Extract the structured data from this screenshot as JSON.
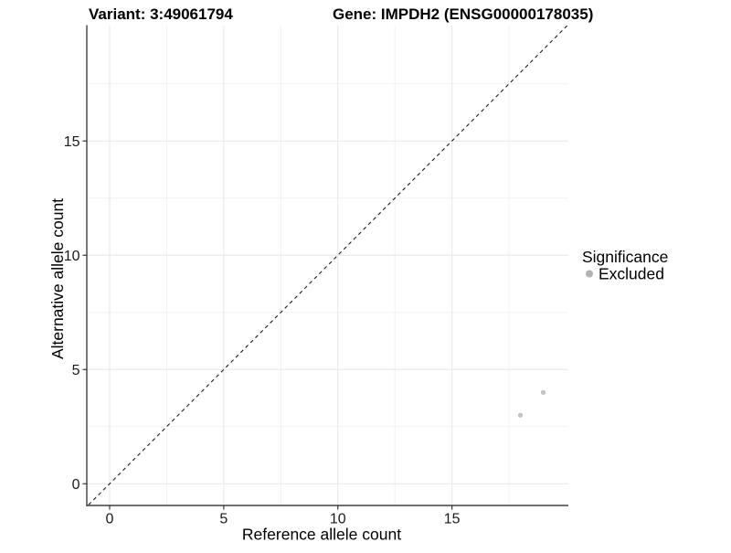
{
  "chart_data": {
    "type": "scatter",
    "titles": {
      "left": "Variant: 3:49061794",
      "right": "Gene: IMPDH2 (ENSG00000178035)"
    },
    "xlabel": "Reference allele count",
    "ylabel": "Alternative allele count",
    "xlim": [
      -1,
      20.1
    ],
    "ylim": [
      -0.95,
      20.05
    ],
    "x_ticks": [
      0,
      5,
      10,
      15
    ],
    "y_ticks": [
      0,
      5,
      10,
      15
    ],
    "x_minor_ticks": [
      2.5,
      7.5,
      12.5,
      17.5
    ],
    "y_minor_ticks": [
      2.5,
      7.5,
      12.5,
      17.5
    ],
    "grid": "major+minor",
    "reference_line": {
      "type": "identity",
      "equation": "y = x",
      "linetype": "dashed",
      "color": "#1a1a1a"
    },
    "series": [
      {
        "name": "Excluded",
        "marker": "circle",
        "color": "#c2c2c2",
        "points": [
          {
            "x": 18,
            "y": 3
          },
          {
            "x": 19,
            "y": 4
          }
        ]
      }
    ],
    "legend": {
      "title": "Significance",
      "position": "right",
      "entries": [
        {
          "label": "Excluded",
          "color": "#b3b3b3"
        }
      ]
    },
    "colors": {
      "background": "#ffffff",
      "axis_line": "#404040",
      "tick_mark": "#333333",
      "grid_major": "#e6e6e6",
      "grid_minor": "#f2f2f2",
      "text": "#000000"
    }
  }
}
